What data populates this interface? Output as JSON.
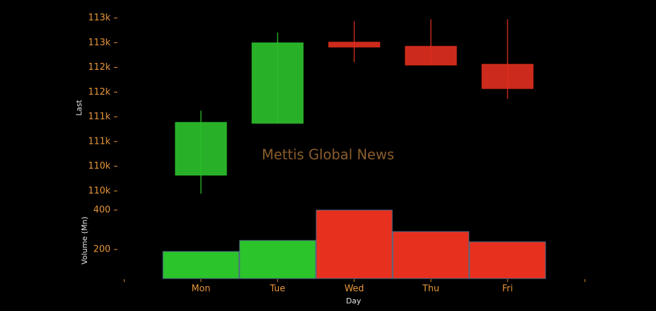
{
  "chart_data": [
    {
      "type": "candlestick",
      "ylabel": "Last",
      "watermark": "Mettis Global News",
      "open": [
        110070,
        111120,
        112760,
        112676,
        112312
      ],
      "high": [
        111374,
        112956,
        113180,
        113222,
        113222
      ],
      "low": [
        109694,
        111120,
        112354,
        112298,
        111612
      ],
      "close": [
        111136,
        112746,
        112662,
        112298,
        111822
      ],
      "up_color": "#2bbf2b",
      "down_color": "#dd2e1e",
      "ylim": [
        109600,
        113250
      ],
      "yticks": [
        {
          "value": 109750,
          "label": "110k"
        },
        {
          "value": 110250,
          "label": "110k"
        },
        {
          "value": 110750,
          "label": "111k"
        },
        {
          "value": 111250,
          "label": "111k"
        },
        {
          "value": 111750,
          "label": "112k"
        },
        {
          "value": 112250,
          "label": "112k"
        },
        {
          "value": 112750,
          "label": "113k"
        },
        {
          "value": 113250,
          "label": "113k"
        }
      ]
    },
    {
      "type": "bar",
      "ylabel": "Volume (Mn)",
      "xlabel": "Day",
      "categories": [
        "Mon",
        "Tue",
        "Wed",
        "Thu",
        "Fri"
      ],
      "values": [
        190,
        246,
        400,
        291,
        239
      ],
      "colors": [
        "#2bc42b",
        "#2bc42b",
        "#e8301e",
        "#e8301e",
        "#e8301e"
      ],
      "ylim": [
        53,
        400
      ],
      "yticks": [
        200,
        400
      ]
    }
  ]
}
